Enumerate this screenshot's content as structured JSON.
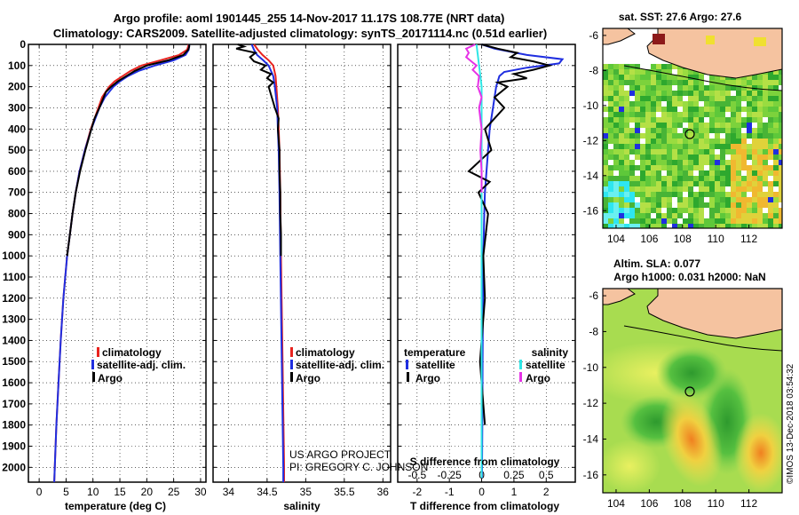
{
  "header": {
    "line1": "Argo profile: aoml 1901445_255 14-Nov-2017 11.17S 108.77E (NRT data)",
    "line2": "Climatology: CARS2009. Satellite-adjusted climatology: synTS_20171114.nc (0.51d earlier)"
  },
  "credits": {
    "project": "US ARGO PROJECT",
    "pi": "PI: GREGORY C. JOHNSON",
    "imos": "©IMOS 13-Dec-2018 03:54:32"
  },
  "colors": {
    "climatology": "#e8231f",
    "satellite": "#1f2ee0",
    "argo": "#000000",
    "sal_satellite": "#2ee6e6",
    "sal_argo": "#e632e6",
    "land": "#f5c3a0"
  },
  "legends": {
    "panel1": [
      "climatology",
      "satellite-adj. clim.",
      "Argo"
    ],
    "panel2": [
      "climatology",
      "satellite-adj. clim.",
      "Argo"
    ],
    "panel3_left_title": "temperature",
    "panel3_left": [
      "satellite",
      "Argo"
    ],
    "panel3_right_title": "salinity",
    "panel3_right": [
      "satellite",
      "Argo"
    ]
  },
  "maps": {
    "sst_title": "sat. SST: 27.6 Argo: 27.6",
    "sla_title1": "Altim. SLA: 0.077",
    "sla_title2": "Argo h1000: 0.031 h2000: NaN",
    "lon_ticks": [
      "104",
      "106",
      "108",
      "110",
      "112"
    ],
    "lat_ticks": [
      "-6",
      "-8",
      "-10",
      "-12",
      "-14",
      "-16"
    ],
    "float_lon": 108.77,
    "float_lat": -11.17
  },
  "chart_data": [
    {
      "type": "line",
      "xlabel": "temperature (deg C)",
      "ylabel": "",
      "xlim": [
        -2,
        31
      ],
      "ylim": [
        2070,
        0
      ],
      "x_ticks": [
        "0",
        "5",
        "10",
        "15",
        "20",
        "25",
        "30"
      ],
      "y_ticks": [
        "0",
        "100",
        "200",
        "300",
        "400",
        "500",
        "600",
        "700",
        "800",
        "900",
        "1000",
        "1100",
        "1200",
        "1300",
        "1400",
        "1500",
        "1600",
        "1700",
        "1800",
        "1900",
        "2000"
      ],
      "series": [
        {
          "name": "climatology",
          "depth": [
            0,
            25,
            50,
            75,
            100,
            125,
            150,
            175,
            200,
            250,
            300,
            400,
            500,
            600,
            700,
            800,
            900,
            1000,
            1200,
            1400,
            1600,
            1800,
            2000,
            2070
          ],
          "values": [
            27.8,
            27.5,
            26,
            22.5,
            19,
            17,
            15.5,
            14,
            13,
            11.7,
            11,
            9.6,
            8.5,
            7.5,
            6.8,
            6.2,
            5.7,
            5.2,
            4.5,
            4,
            3.6,
            3.2,
            2.9,
            2.8
          ]
        },
        {
          "name": "satellite-adj. clim.",
          "depth": [
            0,
            25,
            50,
            75,
            100,
            125,
            150,
            175,
            200,
            250,
            300,
            400,
            500,
            600,
            700,
            800,
            900,
            1000,
            1200,
            1400,
            1600,
            1800,
            2000,
            2070
          ],
          "values": [
            27.9,
            27.8,
            27.2,
            25,
            21.5,
            18.5,
            16.5,
            15,
            13.8,
            12.2,
            11.2,
            9.7,
            8.5,
            7.5,
            6.8,
            6.2,
            5.7,
            5.2,
            4.5,
            4,
            3.6,
            3.2,
            2.9,
            2.8
          ]
        },
        {
          "name": "Argo",
          "depth": [
            0,
            10,
            25,
            50,
            75,
            100,
            125,
            150,
            175,
            200,
            225,
            250,
            300,
            350,
            400,
            500,
            600,
            700,
            800,
            900,
            1000
          ],
          "values": [
            27.9,
            27.9,
            27.7,
            26.8,
            24,
            20,
            17.8,
            16.2,
            14.6,
            13.4,
            12.4,
            12,
            11.2,
            10.3,
            9.7,
            8.6,
            7.6,
            6.8,
            6.2,
            5.7,
            5.2
          ]
        }
      ]
    },
    {
      "type": "line",
      "xlabel": "salinity",
      "ylabel": "",
      "xlim": [
        33.8,
        36.1
      ],
      "ylim": [
        2070,
        0
      ],
      "x_ticks": [
        "34",
        "34.5",
        "35",
        "35.5",
        "36"
      ],
      "series": [
        {
          "name": "climatology",
          "depth": [
            0,
            25,
            50,
            75,
            100,
            150,
            200,
            300,
            400,
            500,
            700,
            1000,
            1500,
            2000,
            2070
          ],
          "values": [
            34.33,
            34.38,
            34.44,
            34.52,
            34.58,
            34.61,
            34.62,
            34.64,
            34.65,
            34.66,
            34.67,
            34.68,
            34.7,
            34.72,
            34.72
          ]
        },
        {
          "name": "satellite-adj. clim.",
          "depth": [
            0,
            25,
            50,
            75,
            100,
            150,
            200,
            300,
            400,
            500,
            700,
            1000,
            1500,
            2000,
            2070
          ],
          "values": [
            34.3,
            34.33,
            34.37,
            34.45,
            34.52,
            34.58,
            34.6,
            34.63,
            34.64,
            34.65,
            34.66,
            34.67,
            34.69,
            34.71,
            34.71
          ]
        },
        {
          "name": "Argo",
          "depth": [
            0,
            10,
            20,
            40,
            60,
            80,
            100,
            120,
            140,
            160,
            180,
            200,
            250,
            300,
            350,
            400,
            500,
            600,
            700,
            800,
            900,
            1000
          ],
          "values": [
            34.12,
            34.2,
            34.1,
            34.35,
            34.28,
            34.33,
            34.48,
            34.42,
            34.55,
            34.5,
            34.58,
            34.52,
            34.56,
            34.6,
            34.65,
            34.64,
            34.66,
            34.66,
            34.67,
            34.67,
            34.68,
            34.68
          ]
        }
      ]
    },
    {
      "type": "line",
      "xlabel": "T difference from climatology",
      "x2label": "S difference from climatology",
      "ylabel": "",
      "xlim": [
        -2.6,
        2.9
      ],
      "x2lim": [
        -0.65,
        0.725
      ],
      "ylim": [
        2070,
        0
      ],
      "x_ticks": [
        "-2",
        "-1",
        "0",
        "1",
        "2"
      ],
      "x2_ticks": [
        "-0.5",
        "-0.25",
        "0",
        "0.25",
        "0.5"
      ],
      "series": [
        {
          "name": "temperature satellite",
          "depth": [
            0,
            20,
            50,
            70,
            90,
            110,
            130,
            150,
            200,
            300,
            400,
            500,
            600,
            700,
            800,
            1000,
            1200,
            1500,
            1800,
            2050
          ],
          "values": [
            0,
            0.4,
            1.4,
            2.5,
            2.4,
            1.4,
            0.7,
            0.55,
            0.45,
            0.35,
            0.25,
            0.2,
            0.15,
            0.1,
            0.08,
            0.05,
            0.04,
            0.03,
            0.02,
            0.01
          ]
        },
        {
          "name": "temperature Argo",
          "depth": [
            0,
            20,
            40,
            60,
            80,
            100,
            120,
            140,
            160,
            180,
            200,
            250,
            300,
            400,
            500,
            600,
            650,
            700,
            800,
            1000,
            1200,
            1500,
            1800
          ],
          "values": [
            0,
            0.5,
            1.1,
            0.9,
            1.6,
            2.1,
            1.6,
            1.0,
            1.4,
            0.5,
            0.8,
            0.4,
            0.7,
            0.1,
            0.3,
            -0.4,
            0.25,
            -0.1,
            0.2,
            0.05,
            0.1,
            -0.05,
            0.1
          ]
        },
        {
          "name": "salinity satellite",
          "depth": [
            0,
            50,
            100,
            150,
            200,
            300,
            400,
            500,
            700,
            1000,
            1500,
            2050
          ],
          "values": [
            -0.04,
            -0.03,
            -0.02,
            -0.01,
            0,
            0,
            0,
            0,
            0,
            0,
            0,
            0
          ]
        },
        {
          "name": "salinity Argo",
          "depth": [
            0,
            20,
            40,
            60,
            80,
            100,
            120,
            150,
            200,
            250,
            300,
            400,
            500,
            600,
            700
          ],
          "values": [
            -0.05,
            -0.12,
            -0.1,
            -0.12,
            -0.08,
            -0.04,
            -0.07,
            -0.02,
            -0.03,
            0,
            -0.02,
            0,
            -0.01,
            0,
            0
          ]
        }
      ]
    }
  ]
}
